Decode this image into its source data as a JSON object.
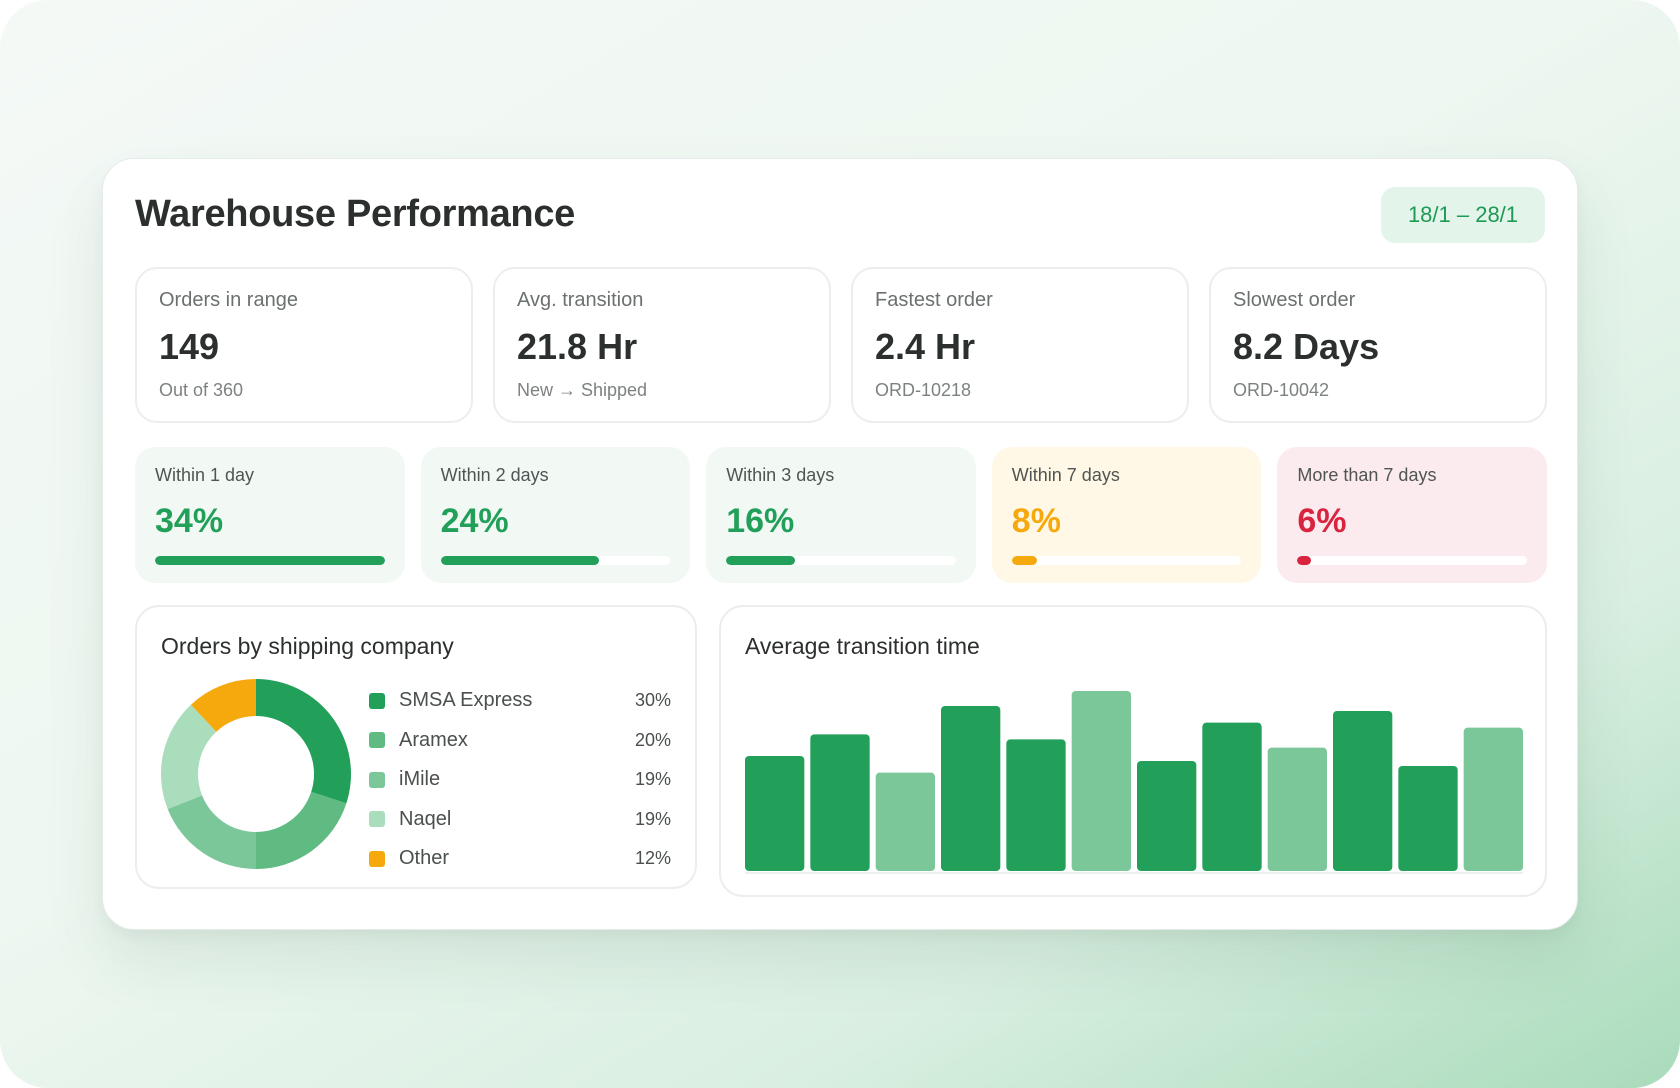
{
  "header": {
    "title": "Warehouse Performance",
    "date_range": "18/1 – 28/1"
  },
  "stats": [
    {
      "label": "Orders in range",
      "value": "149",
      "sub": "Out of 360"
    },
    {
      "label": "Avg. transition",
      "value": "21.8 Hr",
      "sub": "New → Shipped"
    },
    {
      "label": "Fastest order",
      "value": "2.4 Hr",
      "sub": "ORD-10218"
    },
    {
      "label": "Slowest order",
      "value": "8.2 Days",
      "sub": "ORD-10042"
    }
  ],
  "buckets": [
    {
      "label": "Within 1 day",
      "value": "34%",
      "fraction": 1.0,
      "color": "#22a05a",
      "tone": "green"
    },
    {
      "label": "Within 2 days",
      "value": "24%",
      "fraction": 0.69,
      "color": "#22a05a",
      "tone": "green"
    },
    {
      "label": "Within 3 days",
      "value": "16%",
      "fraction": 0.3,
      "color": "#22a05a",
      "tone": "green"
    },
    {
      "label": "Within 7 days",
      "value": "8%",
      "fraction": 0.11,
      "color": "#f5a90c",
      "tone": "amber"
    },
    {
      "label": "More than 7 days",
      "value": "6%",
      "fraction": 0.06,
      "color": "#d8243f",
      "tone": "red"
    }
  ],
  "colors": {
    "accent": "#22a05a",
    "green_mid": "#5fbb81",
    "green_light": "#7cc79a",
    "green_pale": "#a9ddbb",
    "amber": "#f5a90c",
    "red": "#d8243f"
  },
  "shipping": {
    "title": "Orders by shipping company",
    "chart_data": {
      "type": "pie",
      "donut": true,
      "slices": [
        {
          "name": "SMSA Express",
          "label": "30%",
          "value": 30,
          "color": "#22a05a"
        },
        {
          "name": "Aramex",
          "label": "20%",
          "value": 20,
          "color": "#5fbb81"
        },
        {
          "name": "iMile",
          "label": "19%",
          "value": 19,
          "color": "#7cc79a"
        },
        {
          "name": "Naqel",
          "label": "19%",
          "value": 19,
          "color": "#a9ddbb"
        },
        {
          "name": "Other",
          "label": "12%",
          "value": 12,
          "color": "#f5a90c"
        }
      ]
    }
  },
  "transition": {
    "title": "Average transition time",
    "chart_data": {
      "type": "bar",
      "values": [
        69,
        82,
        59,
        99,
        79,
        108,
        66,
        89,
        74,
        96,
        63,
        86
      ],
      "colors": [
        "#22a05a",
        "#22a05a",
        "#7cc79a",
        "#22a05a",
        "#22a05a",
        "#7cc79a",
        "#22a05a",
        "#22a05a",
        "#7cc79a",
        "#22a05a",
        "#22a05a",
        "#7cc79a"
      ],
      "ylim": [
        0,
        108
      ]
    }
  }
}
